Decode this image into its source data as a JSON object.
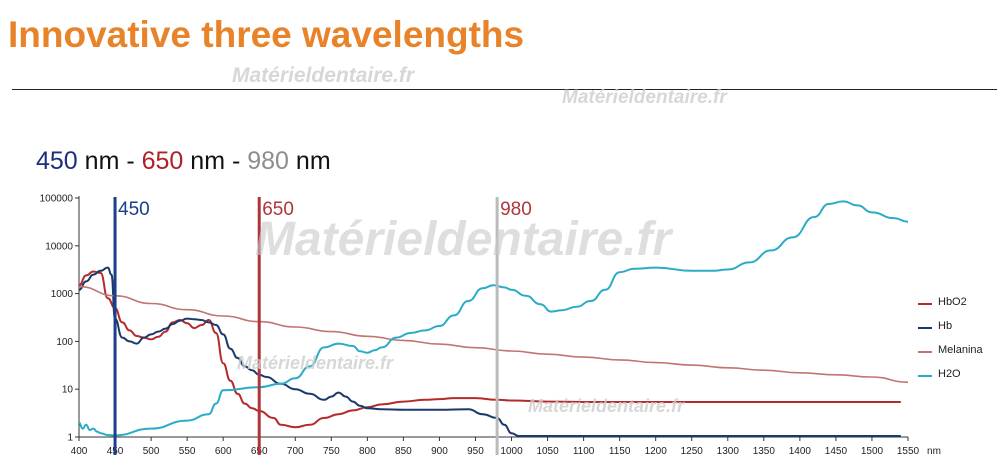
{
  "header": {
    "title": "Innovative three wavelengths"
  },
  "watermark": "Matérieldentaire.fr",
  "wavelength_heading": {
    "w1": "450",
    "sep1": " nm - ",
    "w2": "650",
    "sep2": " nm - ",
    "w3": "980",
    "unit": " nm"
  },
  "colors": {
    "title": "#e8832a",
    "HbO2": "#b52a2a",
    "Hb": "#1b3a6b",
    "Melanina": "#c07570",
    "H2O": "#2aacc8",
    "line450": "#1c3f8a",
    "line650": "#b0353a",
    "line980": "#bbbbbb"
  },
  "chart_data": {
    "type": "line",
    "title": "",
    "xlabel": "nm",
    "ylabel": "",
    "yscale": "log",
    "xlim": [
      400,
      1550
    ],
    "ylim": [
      1,
      100000
    ],
    "x_ticks": [
      400,
      450,
      500,
      550,
      600,
      650,
      700,
      750,
      800,
      850,
      900,
      950,
      1000,
      1050,
      1100,
      1150,
      1200,
      1250,
      1300,
      1350,
      1400,
      1450,
      1500,
      1550
    ],
    "y_ticks": [
      1,
      10,
      100,
      1000,
      10000,
      100000
    ],
    "y_tick_labels": [
      "1",
      "10",
      "100",
      "1000",
      "10000",
      "100000"
    ],
    "grid": false,
    "legend_position": "right",
    "vertical_markers": [
      {
        "x": 450,
        "label": "450"
      },
      {
        "x": 650,
        "label": "650"
      },
      {
        "x": 980,
        "label": "980"
      }
    ],
    "series": [
      {
        "name": "HbO2",
        "points": [
          [
            400,
            1500
          ],
          [
            410,
            2400
          ],
          [
            420,
            2900
          ],
          [
            430,
            2700
          ],
          [
            440,
            800
          ],
          [
            450,
            500
          ],
          [
            460,
            250
          ],
          [
            470,
            170
          ],
          [
            480,
            130
          ],
          [
            490,
            120
          ],
          [
            500,
            110
          ],
          [
            510,
            125
          ],
          [
            520,
            160
          ],
          [
            530,
            250
          ],
          [
            540,
            280
          ],
          [
            550,
            240
          ],
          [
            560,
            190
          ],
          [
            570,
            220
          ],
          [
            580,
            280
          ],
          [
            590,
            150
          ],
          [
            600,
            35
          ],
          [
            610,
            15
          ],
          [
            620,
            8
          ],
          [
            630,
            5
          ],
          [
            640,
            4
          ],
          [
            650,
            3.5
          ],
          [
            670,
            2.5
          ],
          [
            680,
            1.8
          ],
          [
            700,
            1.6
          ],
          [
            720,
            1.8
          ],
          [
            740,
            2.5
          ],
          [
            760,
            3
          ],
          [
            780,
            3.6
          ],
          [
            800,
            4.2
          ],
          [
            820,
            4.8
          ],
          [
            850,
            5.5
          ],
          [
            880,
            6
          ],
          [
            900,
            6.2
          ],
          [
            920,
            6.5
          ],
          [
            950,
            6.5
          ],
          [
            980,
            6
          ],
          [
            1000,
            5.8
          ],
          [
            1050,
            5.5
          ],
          [
            1100,
            5.4
          ],
          [
            1200,
            5.4
          ],
          [
            1300,
            5.4
          ],
          [
            1400,
            5.4
          ],
          [
            1500,
            5.4
          ],
          [
            1540,
            5.4
          ]
        ]
      },
      {
        "name": "Hb",
        "points": [
          [
            400,
            1200
          ],
          [
            410,
            1800
          ],
          [
            420,
            2500
          ],
          [
            430,
            3000
          ],
          [
            440,
            3500
          ],
          [
            445,
            2500
          ],
          [
            450,
            300
          ],
          [
            460,
            120
          ],
          [
            470,
            100
          ],
          [
            480,
            90
          ],
          [
            490,
            120
          ],
          [
            500,
            140
          ],
          [
            510,
            160
          ],
          [
            520,
            185
          ],
          [
            530,
            230
          ],
          [
            540,
            270
          ],
          [
            550,
            300
          ],
          [
            560,
            290
          ],
          [
            570,
            280
          ],
          [
            580,
            250
          ],
          [
            590,
            220
          ],
          [
            600,
            140
          ],
          [
            610,
            70
          ],
          [
            620,
            45
          ],
          [
            630,
            30
          ],
          [
            640,
            25
          ],
          [
            650,
            20
          ],
          [
            660,
            18
          ],
          [
            680,
            13
          ],
          [
            700,
            10
          ],
          [
            720,
            8
          ],
          [
            740,
            6
          ],
          [
            750,
            7
          ],
          [
            760,
            8.5
          ],
          [
            770,
            7
          ],
          [
            780,
            5.5
          ],
          [
            790,
            4.5
          ],
          [
            800,
            4
          ],
          [
            820,
            3.8
          ],
          [
            850,
            3.7
          ],
          [
            900,
            3.7
          ],
          [
            940,
            3.8
          ],
          [
            960,
            3
          ],
          [
            980,
            2.5
          ],
          [
            990,
            1.8
          ],
          [
            1000,
            1.2
          ],
          [
            1010,
            1.05
          ],
          [
            1100,
            1.05
          ],
          [
            1200,
            1.05
          ],
          [
            1300,
            1.05
          ],
          [
            1400,
            1.05
          ],
          [
            1500,
            1.05
          ],
          [
            1540,
            1.05
          ]
        ]
      },
      {
        "name": "Melanina",
        "points": [
          [
            400,
            1400
          ],
          [
            450,
            900
          ],
          [
            500,
            620
          ],
          [
            550,
            460
          ],
          [
            600,
            340
          ],
          [
            650,
            260
          ],
          [
            700,
            200
          ],
          [
            750,
            160
          ],
          [
            800,
            128
          ],
          [
            850,
            105
          ],
          [
            900,
            88
          ],
          [
            950,
            74
          ],
          [
            1000,
            63
          ],
          [
            1050,
            54
          ],
          [
            1100,
            47
          ],
          [
            1150,
            41
          ],
          [
            1200,
            36
          ],
          [
            1250,
            32
          ],
          [
            1300,
            28
          ],
          [
            1350,
            25
          ],
          [
            1400,
            22
          ],
          [
            1450,
            20
          ],
          [
            1500,
            18
          ],
          [
            1550,
            14
          ]
        ]
      },
      {
        "name": "H2O",
        "points": [
          [
            400,
            2
          ],
          [
            405,
            1.5
          ],
          [
            410,
            1.8
          ],
          [
            415,
            1.4
          ],
          [
            420,
            1.5
          ],
          [
            425,
            1.3
          ],
          [
            430,
            1.2
          ],
          [
            440,
            1.1
          ],
          [
            450,
            1.08
          ],
          [
            500,
            1.5
          ],
          [
            550,
            2.2
          ],
          [
            580,
            3
          ],
          [
            590,
            5
          ],
          [
            600,
            9.5
          ],
          [
            650,
            11
          ],
          [
            680,
            13
          ],
          [
            700,
            17
          ],
          [
            720,
            30
          ],
          [
            740,
            75
          ],
          [
            760,
            90
          ],
          [
            780,
            80
          ],
          [
            790,
            62
          ],
          [
            800,
            58
          ],
          [
            810,
            65
          ],
          [
            820,
            75
          ],
          [
            840,
            120
          ],
          [
            860,
            150
          ],
          [
            880,
            170
          ],
          [
            900,
            210
          ],
          [
            920,
            350
          ],
          [
            940,
            700
          ],
          [
            960,
            1300
          ],
          [
            975,
            1500
          ],
          [
            990,
            1350
          ],
          [
            1000,
            1200
          ],
          [
            1020,
            900
          ],
          [
            1040,
            600
          ],
          [
            1055,
            420
          ],
          [
            1070,
            450
          ],
          [
            1090,
            530
          ],
          [
            1110,
            700
          ],
          [
            1130,
            1200
          ],
          [
            1150,
            2800
          ],
          [
            1170,
            3300
          ],
          [
            1200,
            3500
          ],
          [
            1250,
            3000
          ],
          [
            1280,
            3000
          ],
          [
            1300,
            3200
          ],
          [
            1330,
            4500
          ],
          [
            1360,
            8000
          ],
          [
            1390,
            15000
          ],
          [
            1420,
            40000
          ],
          [
            1440,
            75000
          ],
          [
            1460,
            85000
          ],
          [
            1480,
            70000
          ],
          [
            1500,
            50000
          ],
          [
            1530,
            38000
          ],
          [
            1550,
            32000
          ]
        ]
      }
    ]
  }
}
